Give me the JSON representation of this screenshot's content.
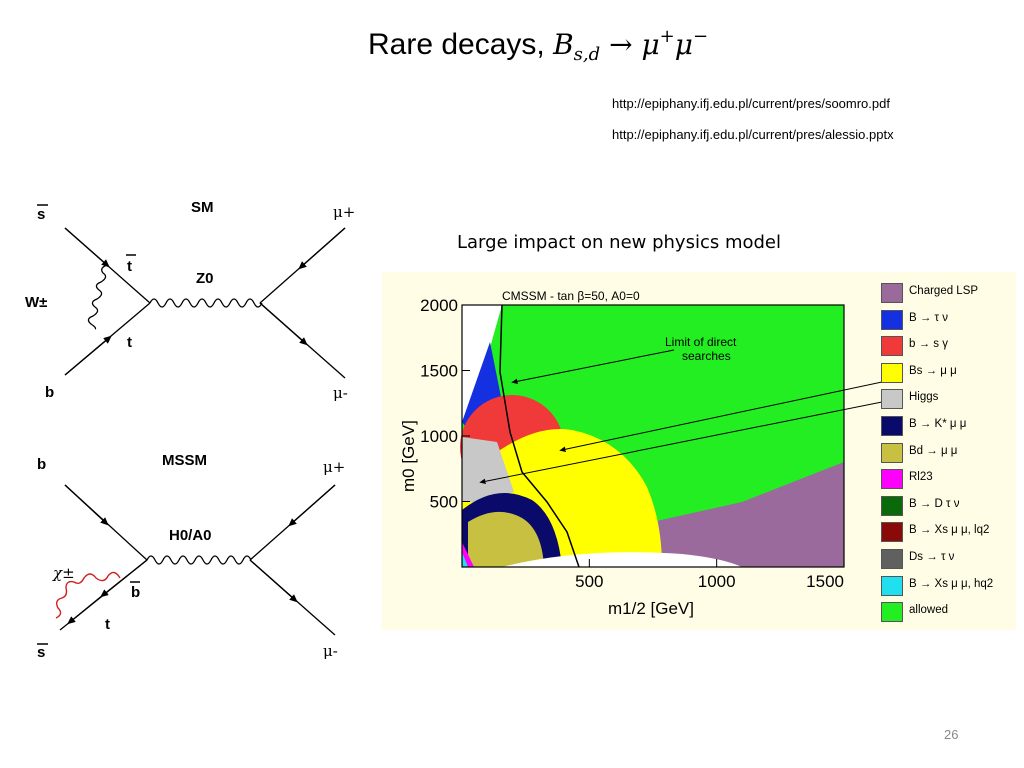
{
  "title": {
    "text": "Rare decays,",
    "formula_B": "B",
    "formula_sub": "s,d",
    "formula_arrow": "→",
    "formula_mu1": "μ",
    "formula_sup1": "+",
    "formula_mu2": "μ",
    "formula_sup2": "−"
  },
  "references": [
    "http://epiphany.ifj.edu.pl/current/pres/soomro.pdf",
    "http://epiphany.ifj.edu.pl/current/pres/alessio.pptx"
  ],
  "caption": "Large impact on new physics model",
  "page_number": "26",
  "feynman": {
    "sm": {
      "label": "SM",
      "in_top": "s",
      "in_bottom": "b",
      "boson_loop": "W±",
      "quark_top": "t",
      "quark_bottom": "t",
      "propagator": "Z0",
      "out_top": "μ+",
      "out_bottom": "μ-"
    },
    "mssm": {
      "label": "MSSM",
      "in_top": "b",
      "in_bottom": "s",
      "chargino": "χ±",
      "quark_b": "b",
      "squark": "t",
      "propagator": "H0/A0",
      "out_top": "μ+",
      "out_bottom": "μ-"
    }
  },
  "plot": {
    "title": "CMSSM  -  tan β=50,  A0=0",
    "annotation": "Limit of direct searches",
    "ylabel": "m0 [GeV]",
    "xlabel": "m1/2 [GeV]",
    "xticks": [
      "500",
      "1000",
      "1500"
    ],
    "yticks": [
      "2000",
      "1500",
      "1000",
      "500"
    ],
    "xlim": [
      0,
      1500
    ],
    "ylim": [
      0,
      2000
    ]
  },
  "legend": [
    {
      "label": "Charged LSP",
      "color": "#9a6a9c"
    },
    {
      "label": "B → τ ν",
      "color": "#1430e0"
    },
    {
      "label": "b → s γ",
      "color": "#f03a3a"
    },
    {
      "label": "Bs → μ μ",
      "color": "#ffff00"
    },
    {
      "label": "Higgs",
      "color": "#c8c8c8"
    },
    {
      "label": "B → K* μ μ",
      "color": "#0a0a6a"
    },
    {
      "label": "Bd → μ μ",
      "color": "#c8c040"
    },
    {
      "label": "Rl23",
      "color": "#ff00ff"
    },
    {
      "label": "B → D τ ν",
      "color": "#0a6a0a"
    },
    {
      "label": "B → Xs μ μ, lq2",
      "color": "#8a0a0a"
    },
    {
      "label": "Ds → τ ν",
      "color": "#606060"
    },
    {
      "label": "B → Xs μ μ, hq2",
      "color": "#20e0f0"
    },
    {
      "label": "allowed",
      "color": "#22ee22"
    }
  ]
}
